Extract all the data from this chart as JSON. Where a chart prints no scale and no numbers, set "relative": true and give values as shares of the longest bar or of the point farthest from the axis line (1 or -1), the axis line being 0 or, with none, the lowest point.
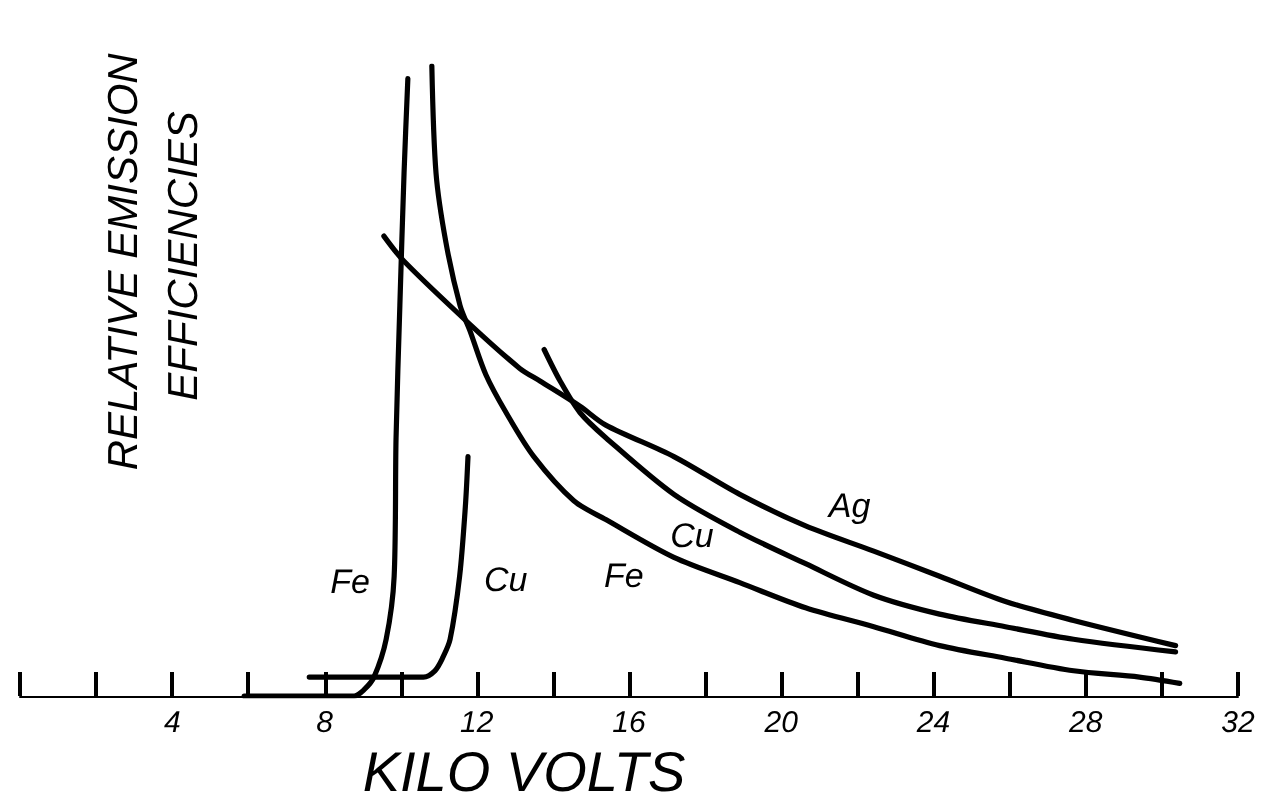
{
  "chart_data": {
    "type": "line",
    "xlabel": "KILO VOLTS",
    "ylabel": "RELATIVE EMISSION EFFICIENCIES",
    "relative": true,
    "marker": "none",
    "line_style": "solid",
    "xlim": [
      0,
      32
    ],
    "xticks": [
      {
        "value": 0,
        "label": null
      },
      {
        "value": 2,
        "label": null
      },
      4,
      {
        "value": 6,
        "label": null
      },
      8,
      {
        "value": 10,
        "label": null
      },
      12,
      {
        "value": 14,
        "label": null
      },
      16,
      {
        "value": 18,
        "label": null
      },
      20,
      {
        "value": 22,
        "label": null
      },
      24,
      {
        "value": 26,
        "label": null
      },
      28,
      {
        "value": 30,
        "label": null
      },
      32
    ],
    "series": [
      {
        "name": "Fe",
        "color": "#000000",
        "x": [
          5.89,
          8.04,
          8.78,
          9.04,
          9.3,
          9.62,
          9.83,
          9.88,
          9.98,
          10.09,
          10.19
        ],
        "values": [
          0,
          0,
          0,
          0.01,
          0.03,
          0.09,
          0.19,
          0.41,
          0.62,
          0.83,
          0.98
        ]
      },
      {
        "name": "Cu",
        "color": "#000000",
        "x": [
          7.6,
          10.2,
          10.6,
          10.9,
          11.1,
          11.3,
          11.55,
          11.7,
          11.77
        ],
        "values": [
          0.03,
          0.03,
          0.03,
          0.04,
          0.06,
          0.09,
          0.19,
          0.3,
          0.38
        ]
      },
      {
        "name": "Fe",
        "color": "#000000",
        "x": [
          10.82,
          10.93,
          11.19,
          11.56,
          11.82,
          12.24,
          12.77,
          13.5,
          14.55,
          15.39,
          17.18,
          18.91,
          20.64,
          22.43,
          24.16,
          25.89,
          27.68,
          29.41,
          30.47
        ],
        "values": [
          1,
          0.83,
          0.72,
          0.62,
          0.58,
          0.51,
          0.45,
          0.38,
          0.31,
          0.28,
          0.22,
          0.18,
          0.14,
          0.11,
          0.08,
          0.06,
          0.04,
          0.03,
          0.02
        ]
      },
      {
        "name": "Cu",
        "color": "#000000",
        "x": [
          13.77,
          14.19,
          14.71,
          15.39,
          17.18,
          18.91,
          20.64,
          22.43,
          24.16,
          25.89,
          27.68,
          30.36
        ],
        "values": [
          0.55,
          0.5,
          0.45,
          0.41,
          0.32,
          0.26,
          0.21,
          0.16,
          0.13,
          0.11,
          0.09,
          0.07
        ]
      },
      {
        "name": "Ag",
        "color": "#000000",
        "x": [
          9.56,
          10.09,
          11.82,
          13.13,
          13.66,
          14.71,
          15.39,
          17.18,
          18.91,
          20.64,
          22.43,
          24.16,
          25.89,
          27.68,
          30.36
        ],
        "values": [
          0.73,
          0.69,
          0.59,
          0.52,
          0.5,
          0.46,
          0.43,
          0.38,
          0.32,
          0.27,
          0.23,
          0.19,
          0.15,
          0.12,
          0.08
        ]
      }
    ]
  }
}
